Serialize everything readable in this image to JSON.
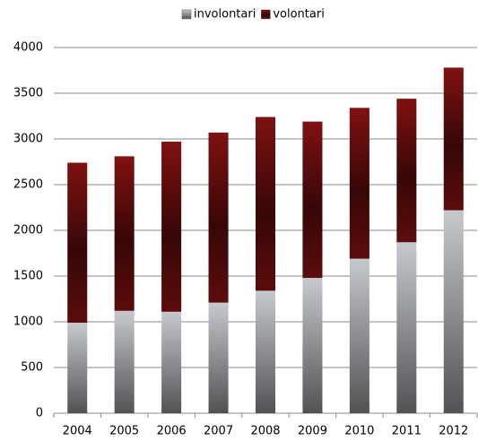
{
  "chart_data": {
    "type": "stacked_bar",
    "categories": [
      "2004",
      "2005",
      "2006",
      "2007",
      "2008",
      "2009",
      "2010",
      "2011",
      "2012"
    ],
    "series": [
      {
        "name": "involontari",
        "color": "#b4b7bb",
        "values": [
          990,
          1120,
          1110,
          1210,
          1340,
          1480,
          1690,
          1870,
          2220
        ]
      },
      {
        "name": "volontari",
        "color": "#7a1010",
        "values": [
          1750,
          1690,
          1860,
          1860,
          1900,
          1710,
          1650,
          1570,
          1560
        ]
      }
    ],
    "ylim": [
      0,
      4000
    ],
    "yticks": [
      0,
      500,
      1000,
      1500,
      2000,
      2500,
      3000,
      3500,
      4000
    ],
    "grid": true,
    "legend": "top"
  }
}
